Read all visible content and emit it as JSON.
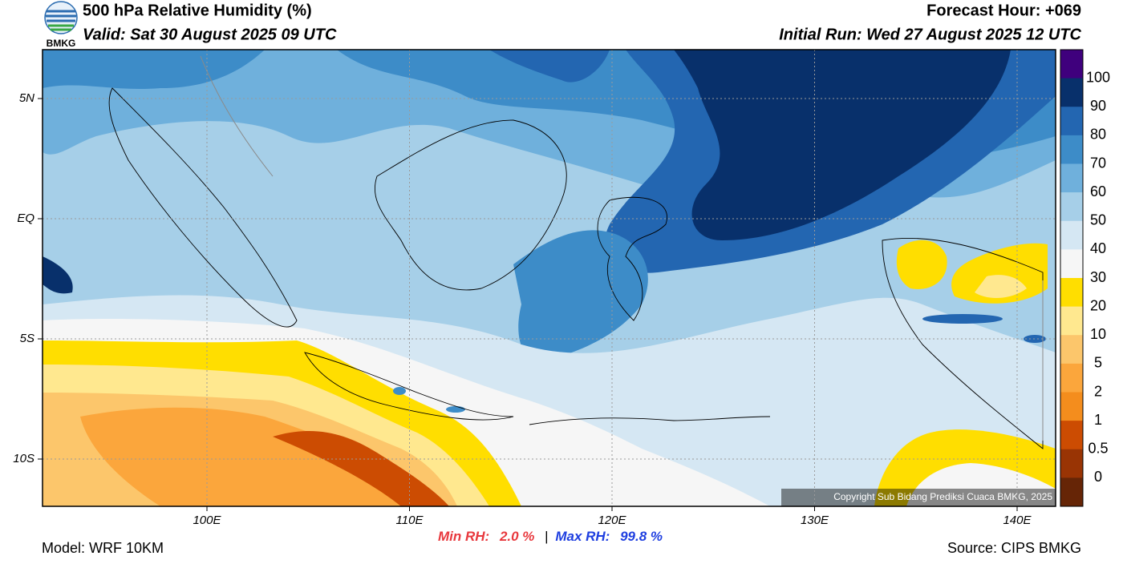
{
  "header": {
    "title": "500 hPa Relative Humidity (%)",
    "valid": "Valid: Sat 30 August 2025 09 UTC",
    "forecast_hour": "Forecast Hour: +069",
    "initial_run": "Initial Run: Wed 27 August 2025 12 UTC",
    "logo_text": "BMKG"
  },
  "map": {
    "lat_labels": [
      "5N",
      "EQ",
      "5S",
      "10S"
    ],
    "lon_labels": [
      "100E",
      "110E",
      "120E",
      "130E",
      "140E"
    ],
    "copyright": "Copyright Sub Bidang Prediksi Cuaca BMKG, 2025"
  },
  "colorbar": {
    "labels": [
      "100",
      "90",
      "80",
      "70",
      "60",
      "50",
      "40",
      "30",
      "20",
      "10",
      "5",
      "2",
      "1",
      "0.5",
      "0"
    ],
    "colors": [
      "#3f007d",
      "#08306b",
      "#2366b1",
      "#3d8cc8",
      "#6fb0dc",
      "#a6cfe8",
      "#d5e7f3",
      "#f6f6f6",
      "#ffde00",
      "#ffe88f",
      "#fcc66b",
      "#fba63c",
      "#f48d1d",
      "#cc4c02",
      "#993404",
      "#662506",
      "#a50f15",
      "#e03a2e"
    ]
  },
  "footer": {
    "model": "Model: WRF 10KM",
    "min_label": "Min RH:",
    "min_value": "2.0 %",
    "separator": "|",
    "max_label": "Max RH:",
    "max_value": "99.8 %",
    "source": "Source: CIPS BMKG"
  }
}
